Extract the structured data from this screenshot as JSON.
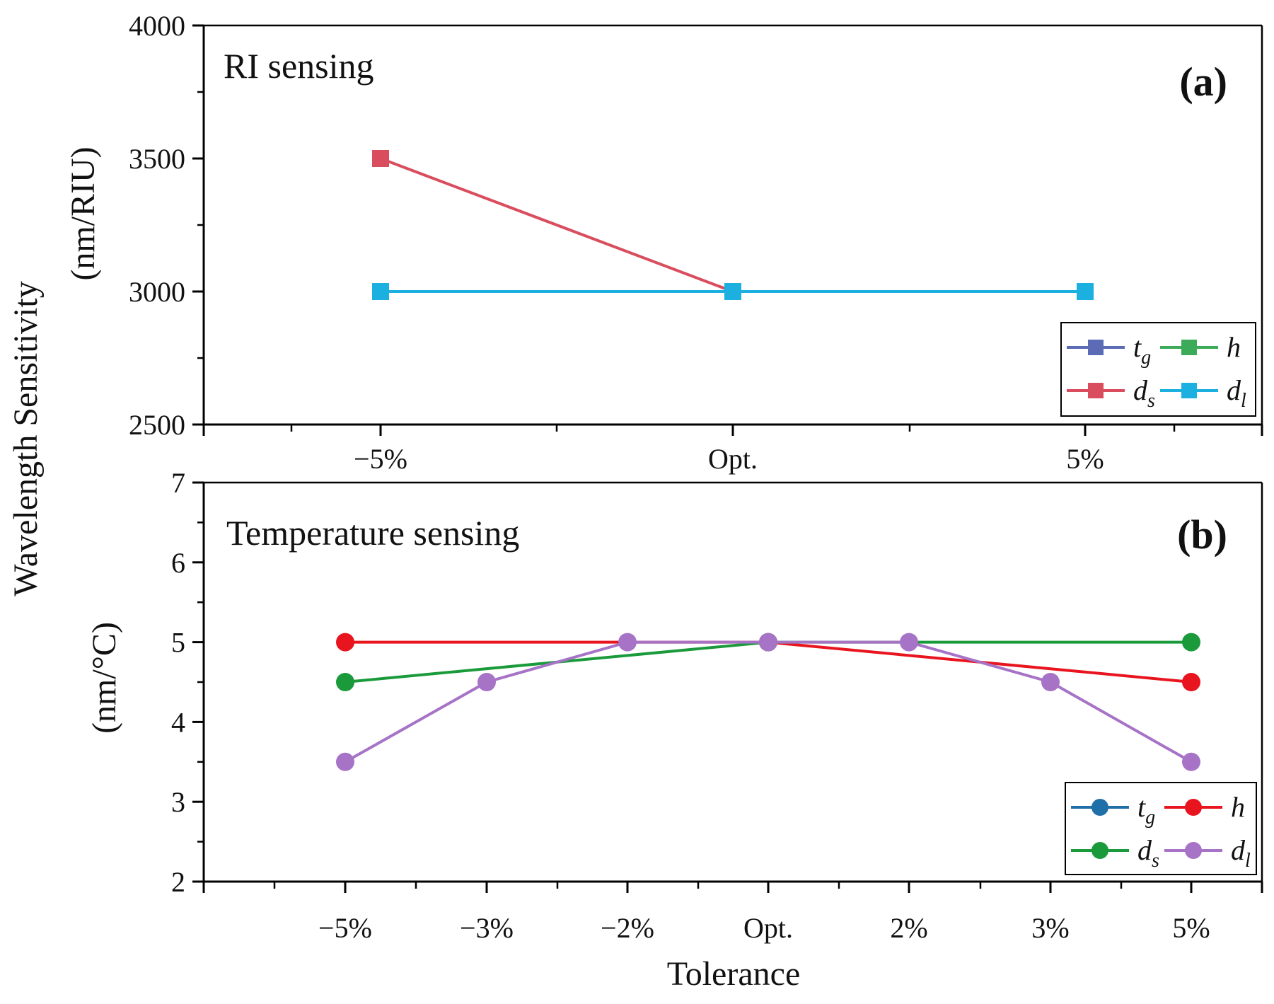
{
  "figure": {
    "ylabel_main": "Wavelength Sensitivity",
    "xlabel": "Tolerance"
  },
  "chart_data": [
    {
      "type": "line",
      "panel_tag": "(a)",
      "title": "RI sensing",
      "ylabel": "(nm/RIU)",
      "xlabel": "",
      "categories": [
        "−5%",
        "Opt.",
        "5%"
      ],
      "ylim": [
        2500,
        4000
      ],
      "yticks": [
        2500,
        3000,
        3500,
        4000
      ],
      "marker": "square",
      "legend_position": "lower-right",
      "series": [
        {
          "name": "t",
          "sub": "g",
          "color": "#5b6bb5",
          "values": [
            null,
            null,
            null
          ]
        },
        {
          "name": "h",
          "sub": "",
          "color": "#3bab5a",
          "values": [
            null,
            null,
            null
          ]
        },
        {
          "name": "d",
          "sub": "s",
          "color": "#d94d5e",
          "values": [
            3500,
            3000,
            null
          ]
        },
        {
          "name": "d",
          "sub": "l",
          "color": "#1bb0e0",
          "values": [
            3000,
            3000,
            3000
          ]
        }
      ]
    },
    {
      "type": "line",
      "panel_tag": "(b)",
      "title": "Temperature sensing",
      "ylabel": "(nm/°C)",
      "xlabel": "Tolerance",
      "categories": [
        "−5%",
        "−3%",
        "−2%",
        "Opt.",
        "2%",
        "3%",
        "5%"
      ],
      "ylim": [
        2,
        7
      ],
      "yticks": [
        2,
        3,
        4,
        5,
        6,
        7
      ],
      "marker": "circle",
      "legend_position": "lower-right",
      "series": [
        {
          "name": "t",
          "sub": "g",
          "color": "#1f6fa8",
          "values": [
            null,
            null,
            null,
            null,
            null,
            null,
            null
          ]
        },
        {
          "name": "h",
          "sub": "",
          "color": "#e8141e",
          "values": [
            5,
            null,
            null,
            5,
            null,
            null,
            4.5
          ]
        },
        {
          "name": "d",
          "sub": "s",
          "color": "#1a9a3a",
          "values": [
            4.5,
            null,
            null,
            5,
            null,
            null,
            5
          ]
        },
        {
          "name": "d",
          "sub": "l",
          "color": "#a673c6",
          "values": [
            3.5,
            4.5,
            5,
            5,
            5,
            4.5,
            3.5
          ]
        }
      ]
    }
  ]
}
